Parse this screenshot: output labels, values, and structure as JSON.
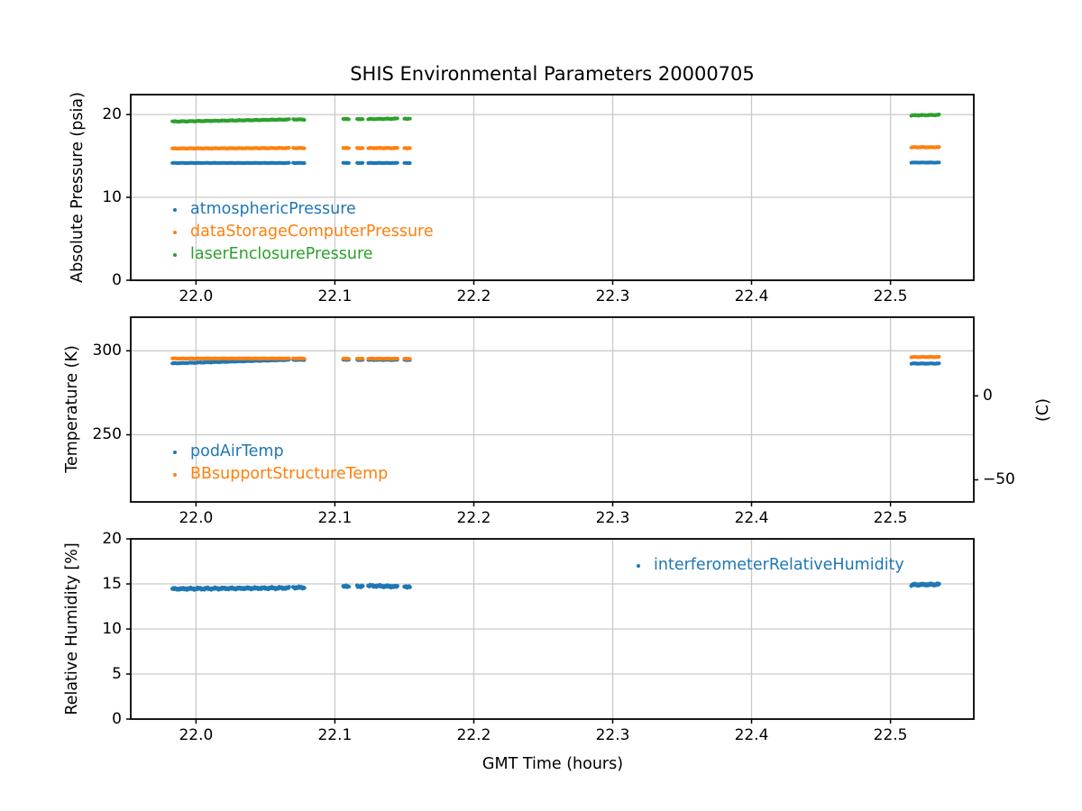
{
  "title": "SHIS Environmental Parameters 20000705",
  "xlabel": "GMT Time (hours)",
  "palette": {
    "blue": "#1f77b4",
    "orange": "#ff7f0e",
    "green": "#2ca02c",
    "grid": "#c9c9c9",
    "spine": "#000000"
  },
  "chart_data": [
    {
      "type": "scatter",
      "ylabel": "Absolute Pressure (psia)",
      "xlim": [
        21.953,
        22.56
      ],
      "ylim": [
        0,
        22.4
      ],
      "xticks": [
        22.0,
        22.1,
        22.2,
        22.3,
        22.4,
        22.5
      ],
      "yticks": [
        0,
        10,
        20
      ],
      "grid": true,
      "legend_position": "lower-left-inside",
      "series": [
        {
          "name": "atmosphericPressure",
          "color": "#1f77b4",
          "noise": 0.03,
          "segments": [
            [
              21.983,
              22.067,
              14.15,
              14.15
            ],
            [
              22.07,
              22.078,
              14.15,
              14.15
            ],
            [
              22.106,
              22.11,
              14.15,
              14.15
            ],
            [
              22.116,
              22.12,
              14.15,
              14.15
            ],
            [
              22.124,
              22.145,
              14.15,
              14.15
            ],
            [
              22.15,
              22.154,
              14.15,
              14.15
            ],
            [
              22.515,
              22.535,
              14.2,
              14.2
            ]
          ]
        },
        {
          "name": "dataStorageComputerPressure",
          "color": "#ff7f0e",
          "noise": 0.05,
          "segments": [
            [
              21.983,
              22.067,
              15.9,
              15.95
            ],
            [
              22.07,
              22.078,
              15.95,
              15.95
            ],
            [
              22.106,
              22.11,
              15.95,
              15.95
            ],
            [
              22.116,
              22.12,
              15.95,
              15.95
            ],
            [
              22.124,
              22.145,
              15.95,
              15.95
            ],
            [
              22.15,
              22.154,
              15.95,
              15.95
            ],
            [
              22.515,
              22.535,
              16.05,
              16.05
            ]
          ]
        },
        {
          "name": "laserEnclosurePressure",
          "color": "#2ca02c",
          "noise": 0.06,
          "segments": [
            [
              21.983,
              22.067,
              19.15,
              19.4
            ],
            [
              22.07,
              22.078,
              19.4,
              19.4
            ],
            [
              22.106,
              22.11,
              19.45,
              19.45
            ],
            [
              22.116,
              22.12,
              19.45,
              19.45
            ],
            [
              22.124,
              22.145,
              19.45,
              19.5
            ],
            [
              22.15,
              22.154,
              19.5,
              19.5
            ],
            [
              22.515,
              22.535,
              19.9,
              19.95
            ]
          ]
        }
      ]
    },
    {
      "type": "scatter",
      "ylabel": "Temperature (K)",
      "right_ylabel": "(C)",
      "xlim": [
        21.953,
        22.56
      ],
      "ylim": [
        210,
        320
      ],
      "xticks": [
        22.0,
        22.1,
        22.2,
        22.3,
        22.4,
        22.5
      ],
      "yticks": [
        250,
        300
      ],
      "right_yticks_C": [
        0,
        -50
      ],
      "celsius_offset": 273.15,
      "grid": true,
      "legend_position": "lower-left-inside",
      "series": [
        {
          "name": "podAirTemp",
          "color": "#1f77b4",
          "noise": 0.25,
          "segments": [
            [
              21.983,
              22.067,
              292.5,
              294.6
            ],
            [
              22.07,
              22.078,
              294.6,
              294.6
            ],
            [
              22.106,
              22.11,
              294.6,
              294.6
            ],
            [
              22.116,
              22.12,
              294.6,
              294.6
            ],
            [
              22.124,
              22.145,
              294.6,
              294.6
            ],
            [
              22.15,
              22.154,
              294.6,
              294.6
            ],
            [
              22.515,
              22.535,
              292.4,
              292.4
            ]
          ]
        },
        {
          "name": "BBsupportStructureTemp",
          "color": "#ff7f0e",
          "noise": 0.2,
          "segments": [
            [
              21.983,
              22.067,
              295.4,
              295.4
            ],
            [
              22.07,
              22.078,
              295.4,
              295.4
            ],
            [
              22.106,
              22.11,
              295.3,
              295.3
            ],
            [
              22.116,
              22.12,
              295.3,
              295.3
            ],
            [
              22.124,
              22.145,
              295.3,
              295.3
            ],
            [
              22.15,
              22.154,
              295.3,
              295.3
            ],
            [
              22.515,
              22.535,
              296.3,
              296.3
            ]
          ]
        }
      ]
    },
    {
      "type": "scatter",
      "ylabel": "Relative Humidity [%]",
      "xlim": [
        21.953,
        22.56
      ],
      "ylim": [
        0,
        20
      ],
      "xticks": [
        22.0,
        22.1,
        22.2,
        22.3,
        22.4,
        22.5
      ],
      "yticks": [
        0,
        5,
        10,
        15,
        20
      ],
      "grid": true,
      "legend_position": "upper-right-inside",
      "series": [
        {
          "name": "interferometerRelativeHumidity",
          "color": "#1f77b4",
          "noise": 0.13,
          "segments": [
            [
              21.983,
              22.067,
              14.45,
              14.55
            ],
            [
              22.07,
              22.078,
              14.6,
              14.6
            ],
            [
              22.106,
              22.11,
              14.7,
              14.7
            ],
            [
              22.116,
              22.12,
              14.75,
              14.75
            ],
            [
              22.124,
              22.145,
              14.8,
              14.7
            ],
            [
              22.15,
              22.154,
              14.7,
              14.7
            ],
            [
              22.515,
              22.535,
              14.9,
              14.95
            ]
          ]
        }
      ]
    }
  ]
}
